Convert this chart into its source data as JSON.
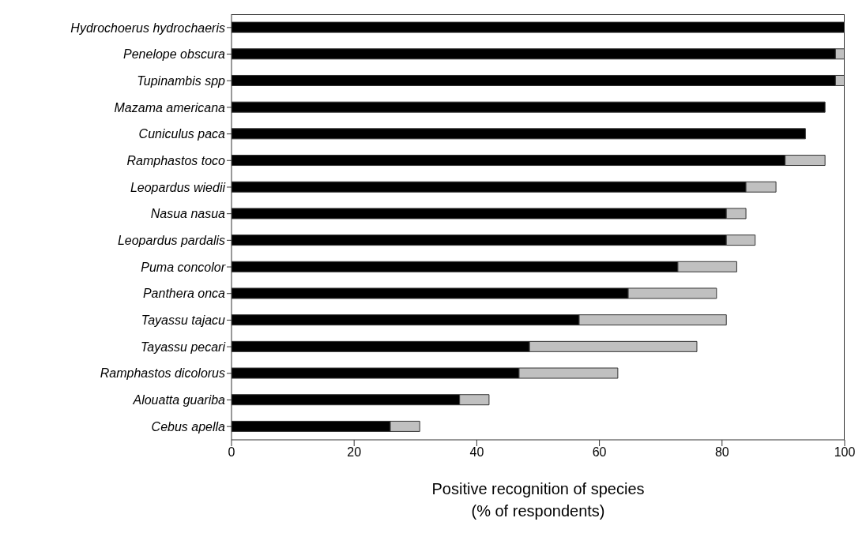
{
  "chart_data": {
    "type": "bar",
    "orientation": "horizontal",
    "stacked": true,
    "categories": [
      "Hydrochoerus hydrochaeris",
      "Penelope obscura",
      "Tupinambis spp",
      "Mazama americana",
      "Cuniculus paca",
      "Ramphastos toco",
      "Leopardus wiedii",
      "Nasua nasua",
      "Leopardus pardalis",
      "Puma concolor",
      "Panthera onca",
      "Tayassu tajacu",
      "Tayassu pecari",
      "Ramphastos dicolorus",
      "Alouatta guariba",
      "Cebus apella"
    ],
    "series": [
      {
        "color": "#000000",
        "values": [
          100,
          98.5,
          98.5,
          96.8,
          93.6,
          90.3,
          83.9,
          80.7,
          80.7,
          72.8,
          64.7,
          56.7,
          48.6,
          46.9,
          37.2,
          25.9
        ]
      },
      {
        "color": "#c0c0c0",
        "values": [
          0,
          1.5,
          1.5,
          0,
          0,
          6.5,
          4.9,
          3.2,
          4.7,
          9.6,
          14.4,
          24.0,
          27.3,
          16.1,
          4.8,
          4.8
        ]
      }
    ],
    "xlim": [
      0,
      100
    ],
    "xticks": [
      0,
      20,
      40,
      60,
      80,
      100
    ],
    "xlabel": "Positive recognition of species\n(% of respondents)"
  }
}
